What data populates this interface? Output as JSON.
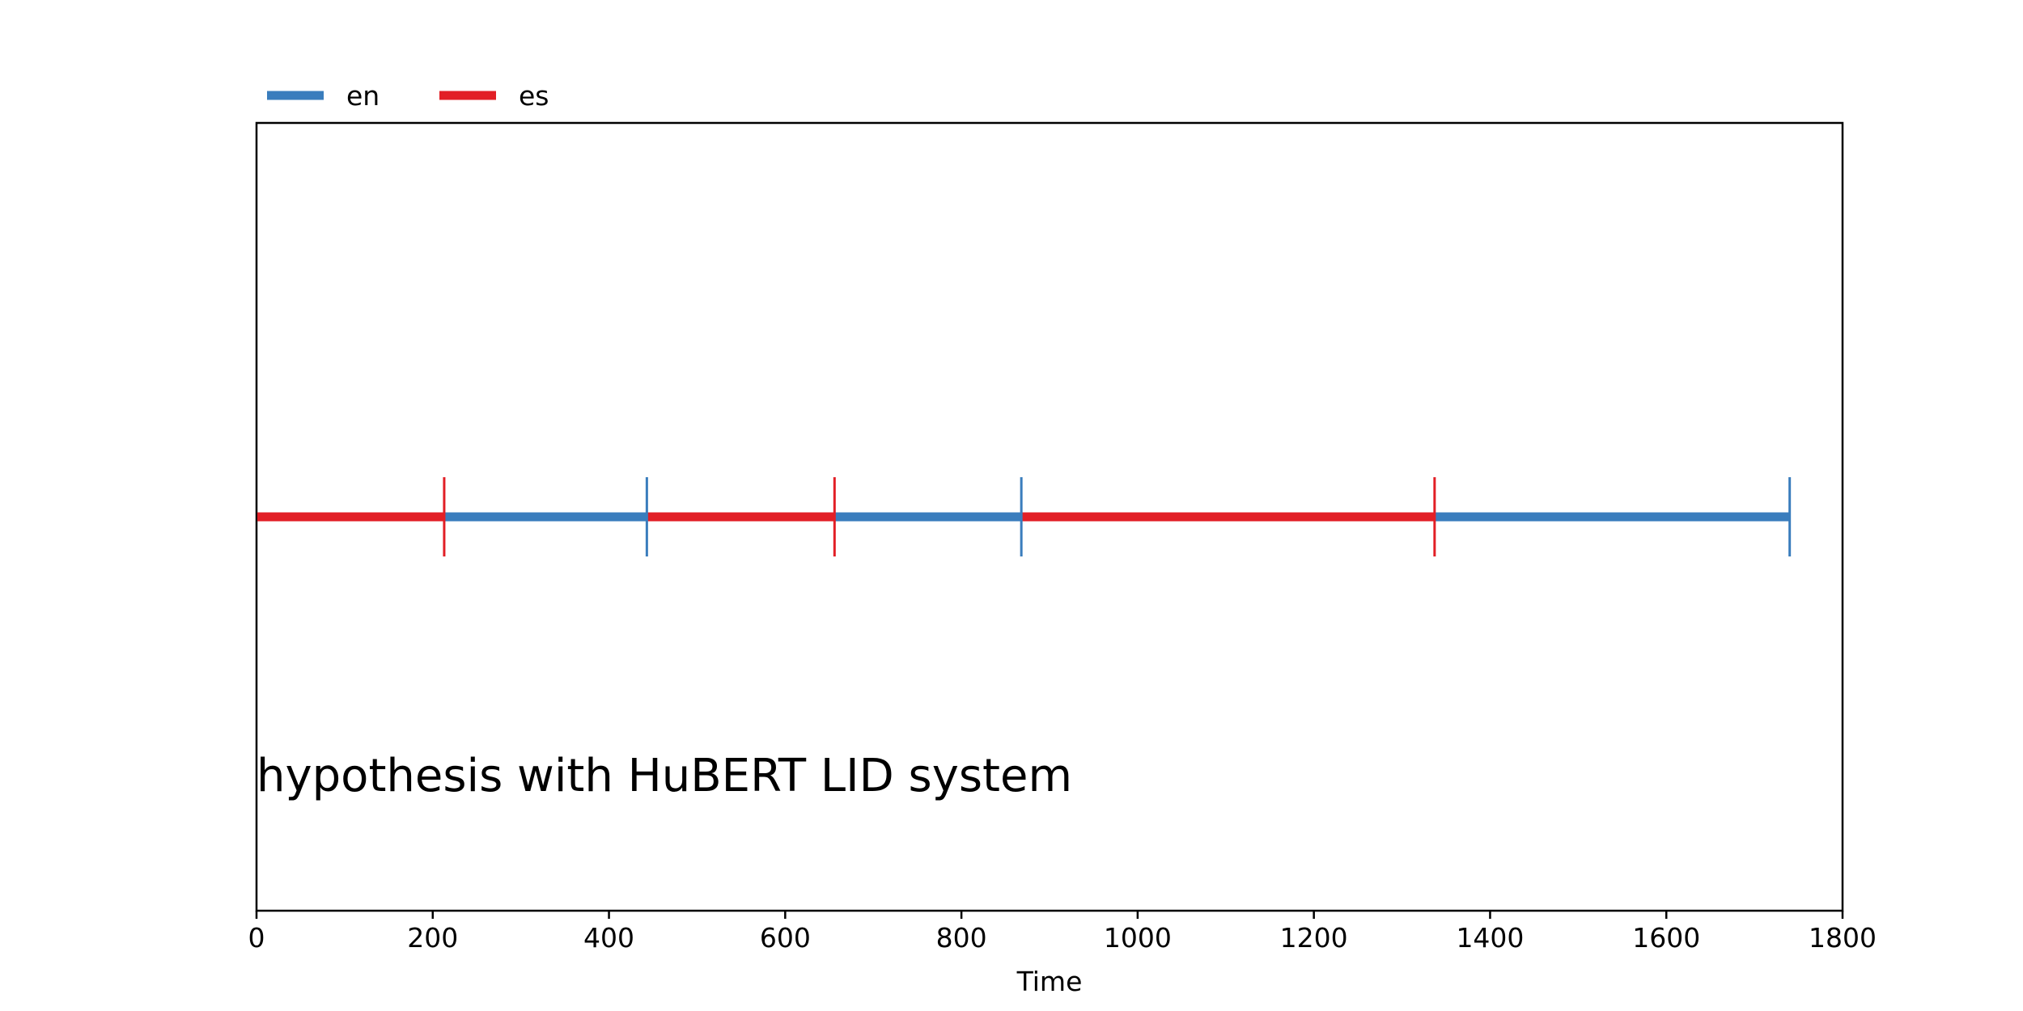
{
  "chart_data": {
    "type": "timeline",
    "title": "",
    "xlabel": "Time",
    "ylabel": "",
    "xlim": [
      0,
      1800
    ],
    "x_ticks": [
      0,
      200,
      400,
      600,
      800,
      1000,
      1200,
      1400,
      1600,
      1800
    ],
    "x_tick_labels": [
      "0",
      "200",
      "400",
      "600",
      "800",
      "1000",
      "1200",
      "1400",
      "1600",
      "1800"
    ],
    "grid": false,
    "legend_placement": "top-left, above axes",
    "series": [
      {
        "name": "en",
        "color": "#3a7dbd"
      },
      {
        "name": "es",
        "color": "#e21f26"
      }
    ],
    "segments": [
      {
        "label": "es",
        "start": 0,
        "end": 213
      },
      {
        "label": "en",
        "start": 213,
        "end": 443
      },
      {
        "label": "es",
        "start": 443,
        "end": 656
      },
      {
        "label": "en",
        "start": 656,
        "end": 868
      },
      {
        "label": "es",
        "start": 868,
        "end": 1337
      },
      {
        "label": "en",
        "start": 1337,
        "end": 1740
      }
    ],
    "annotation": "hypothesis with HuBERT LID system"
  }
}
